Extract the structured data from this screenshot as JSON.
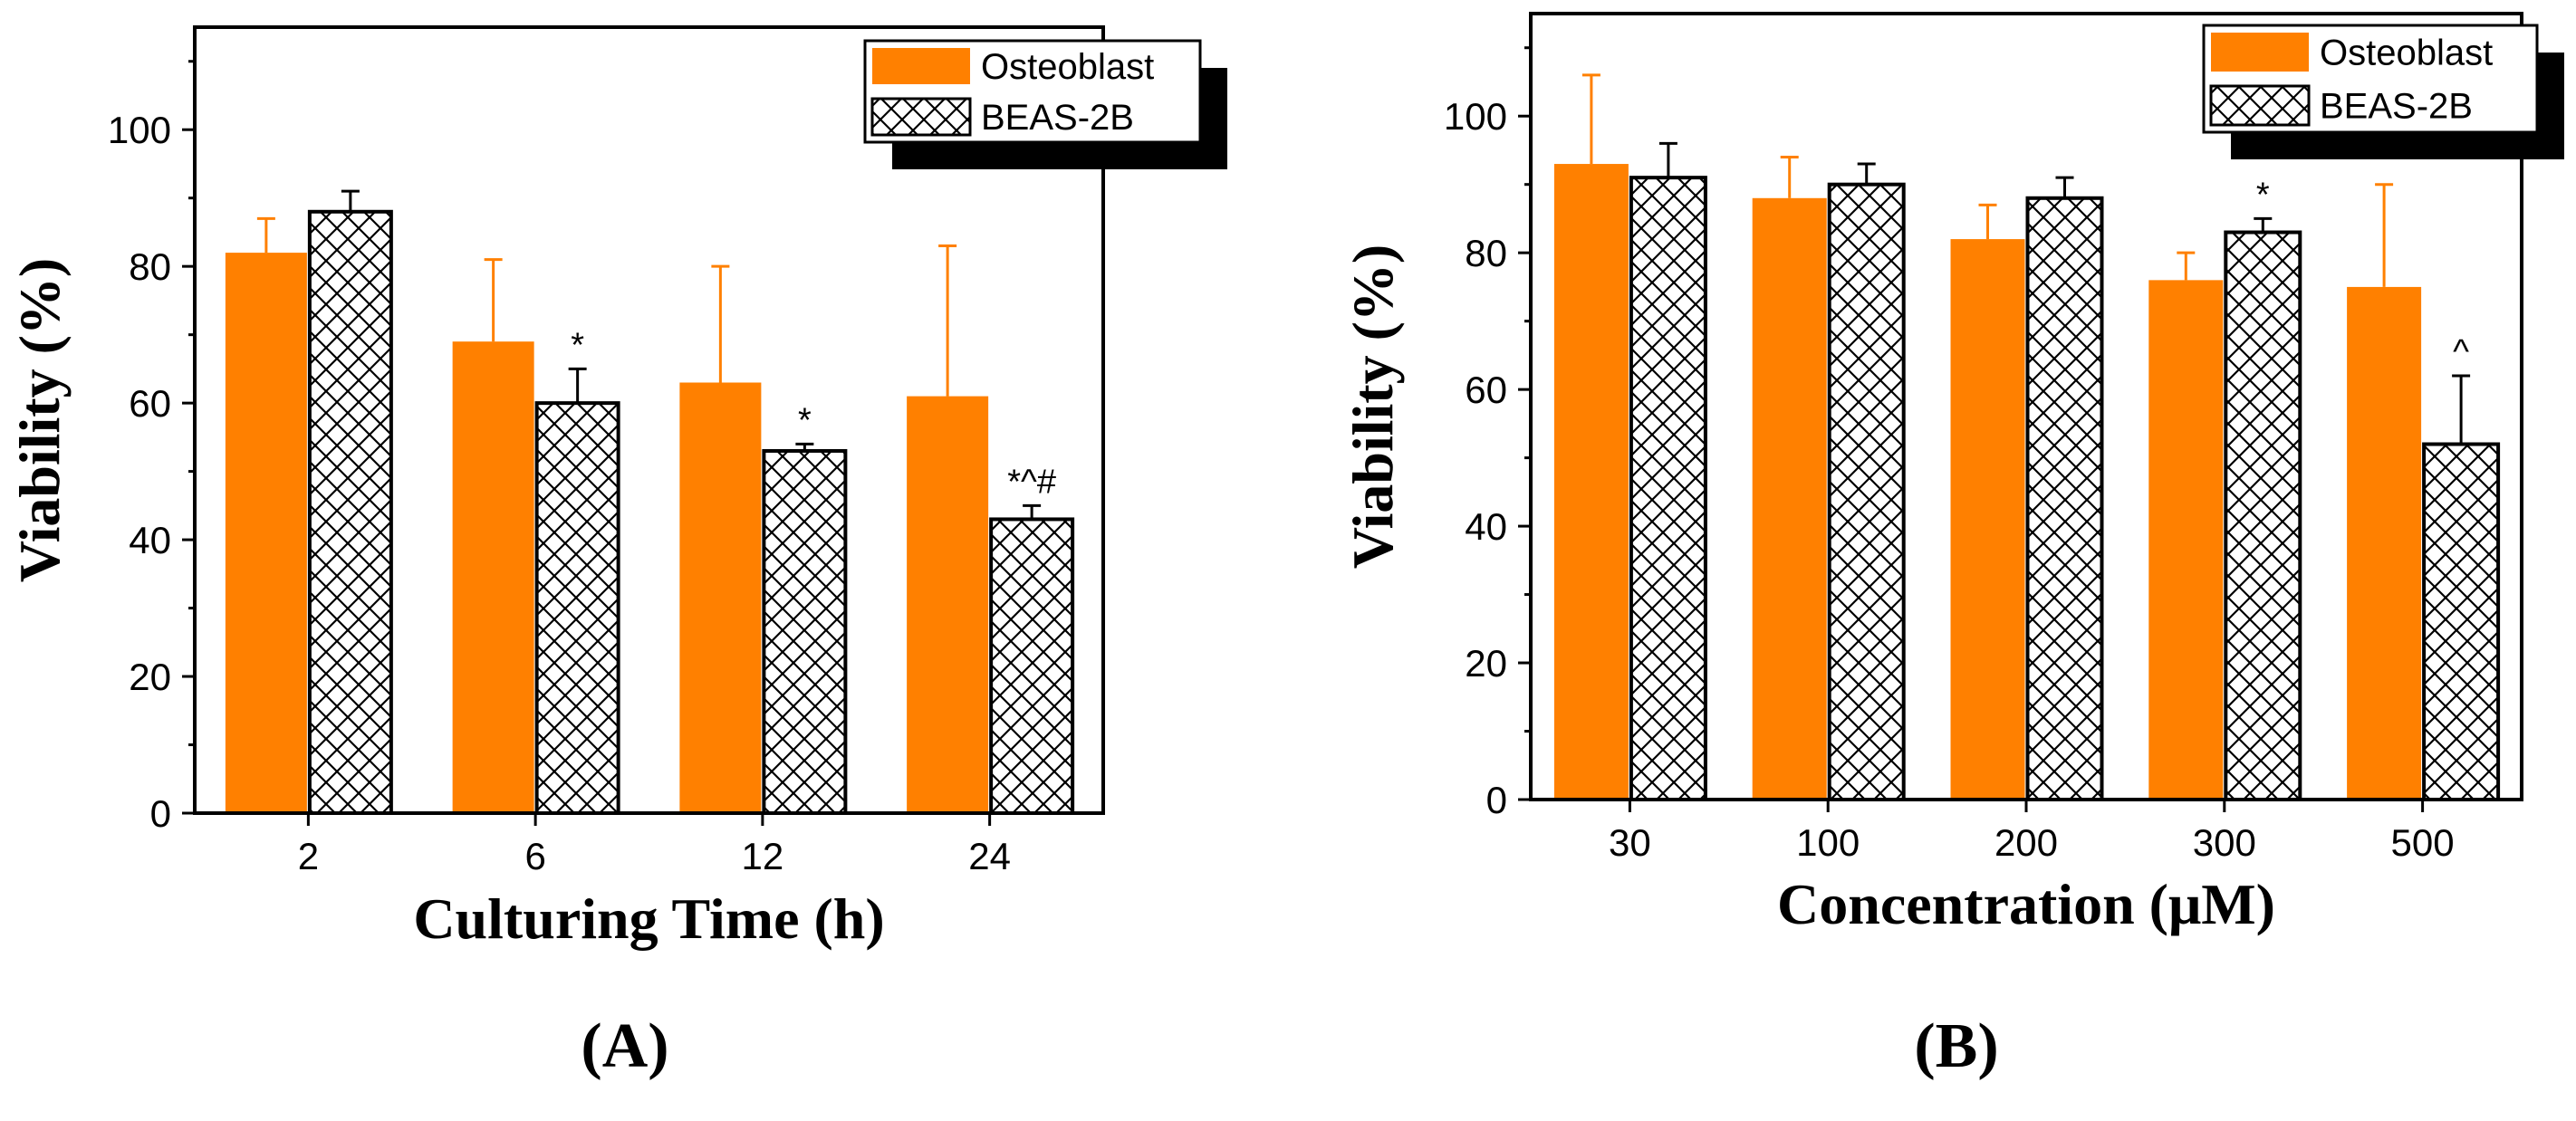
{
  "colors": {
    "osteoblast": "#ff8000",
    "hatch": "#000000",
    "frame": "#000000",
    "background": "#ffffff"
  },
  "chart_data": [
    {
      "panel_label": "(A)",
      "type": "bar",
      "xlabel": "Culturing Time (h)",
      "ylabel": "Viability (%)",
      "ylim": [
        0,
        115
      ],
      "yticks": [
        0,
        20,
        40,
        60,
        80,
        100
      ],
      "categories": [
        "2",
        "6",
        "12",
        "24"
      ],
      "series": [
        {
          "name": "Osteoblast",
          "pattern": "solid",
          "values": [
            82,
            69,
            63,
            61
          ],
          "errors": [
            5,
            12,
            17,
            22
          ]
        },
        {
          "name": "BEAS-2B",
          "pattern": "crosshatch",
          "values": [
            88,
            60,
            53,
            43
          ],
          "errors": [
            3,
            5,
            1,
            2
          ]
        }
      ],
      "annotations": [
        {
          "category_index": 1,
          "series_index": 1,
          "text": "*"
        },
        {
          "category_index": 2,
          "series_index": 1,
          "text": "*"
        },
        {
          "category_index": 3,
          "series_index": 1,
          "text": "*^#"
        }
      ],
      "legend": {
        "position": "top-right",
        "entries": [
          "Osteoblast",
          "BEAS-2B"
        ]
      }
    },
    {
      "panel_label": "(B)",
      "type": "bar",
      "xlabel": "Concentration (μM)",
      "ylabel": "Viability (%)",
      "ylim": [
        0,
        115
      ],
      "yticks": [
        0,
        20,
        40,
        60,
        80,
        100
      ],
      "categories": [
        "30",
        "100",
        "200",
        "300",
        "500"
      ],
      "series": [
        {
          "name": "Osteoblast",
          "pattern": "solid",
          "values": [
            93,
            88,
            82,
            76,
            75
          ],
          "errors": [
            13,
            6,
            5,
            4,
            15
          ]
        },
        {
          "name": "BEAS-2B",
          "pattern": "crosshatch",
          "values": [
            91,
            90,
            88,
            83,
            52
          ],
          "errors": [
            5,
            3,
            3,
            2,
            10
          ]
        }
      ],
      "annotations": [
        {
          "category_index": 3,
          "series_index": 1,
          "text": "*"
        },
        {
          "category_index": 4,
          "series_index": 1,
          "text": "^"
        }
      ],
      "legend": {
        "position": "top-right",
        "entries": [
          "Osteoblast",
          "BEAS-2B"
        ]
      }
    }
  ]
}
